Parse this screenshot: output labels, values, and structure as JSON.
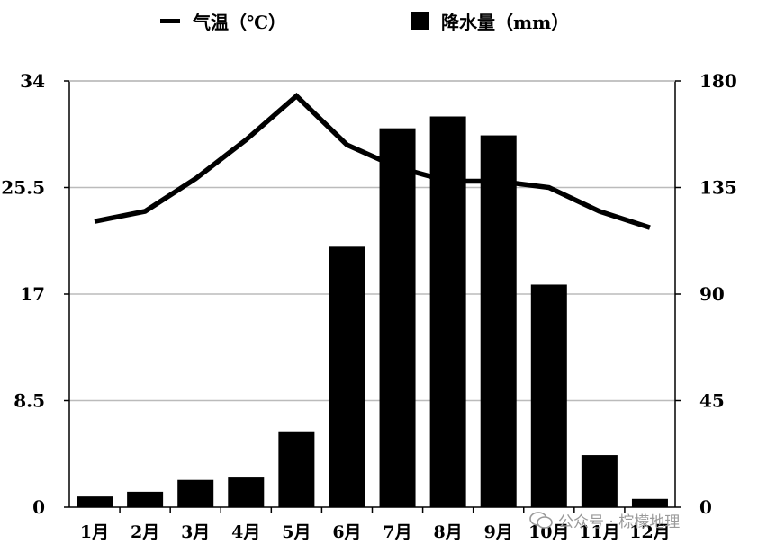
{
  "legend": {
    "temperature_label": "气温（℃）",
    "precipitation_label": "降水量（mm）"
  },
  "watermark": {
    "text": "公众号 · 棕檬地理",
    "icon": "wechat-icon"
  },
  "colors": {
    "series": "#000000",
    "grid": "#bbbbbb",
    "axis": "#000000",
    "watermark": "#9a9a9a"
  },
  "chart_data": {
    "type": "bar",
    "categories": [
      "1月",
      "2月",
      "3月",
      "4月",
      "5月",
      "6月",
      "7月",
      "8月",
      "9月",
      "10月",
      "11月",
      "12月"
    ],
    "series": [
      {
        "name": "降水量（mm）",
        "type": "bar",
        "axis": "right",
        "values": [
          4.5,
          6.5,
          11.5,
          12.5,
          32,
          110,
          160,
          165,
          157,
          94,
          22,
          3.5
        ]
      },
      {
        "name": "气温（℃）",
        "type": "line",
        "axis": "left",
        "values": [
          22.8,
          23.6,
          26.2,
          29.3,
          32.8,
          28.9,
          27.1,
          26.0,
          26.0,
          25.5,
          23.6,
          22.3
        ]
      }
    ],
    "y_left": {
      "min": 0,
      "max": 34,
      "ticks": [
        "0",
        "8.5",
        "17",
        "25.5",
        "34"
      ]
    },
    "y_right": {
      "min": 0,
      "max": 180,
      "ticks": [
        "0",
        "45",
        "90",
        "135",
        "180"
      ]
    },
    "grid": true,
    "legend_position": "top"
  }
}
